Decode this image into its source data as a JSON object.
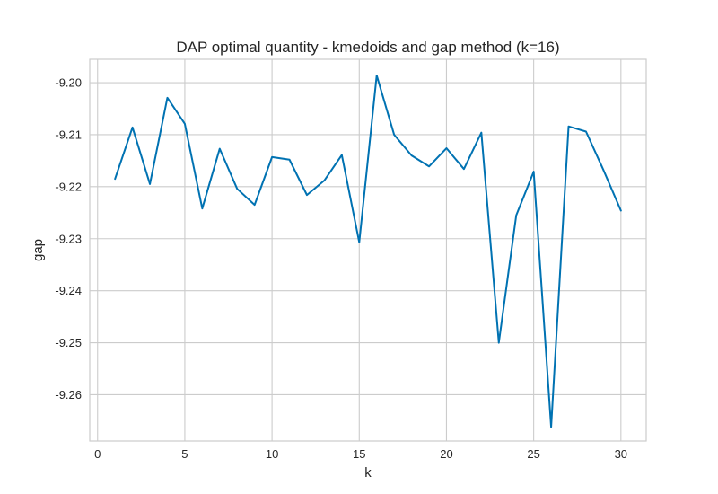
{
  "chart_data": {
    "type": "line",
    "title": "DAP optimal quantity - kmedoids and gap method (k=16)",
    "xlabel": "k",
    "ylabel": "gap",
    "xlim": [
      -0.45,
      31.45
    ],
    "ylim": [
      -9.2689,
      -9.1955
    ],
    "xticks": [
      0,
      5,
      10,
      15,
      20,
      25,
      30
    ],
    "xtick_labels": [
      "0",
      "5",
      "10",
      "15",
      "20",
      "25",
      "30"
    ],
    "yticks": [
      -9.2,
      -9.21,
      -9.22,
      -9.23,
      -9.24,
      -9.25,
      -9.26
    ],
    "ytick_labels": [
      "-9.20",
      "-9.21",
      "-9.22",
      "-9.23",
      "-9.24",
      "-9.25",
      "-9.26"
    ],
    "grid": true,
    "line_color": "#0072b2",
    "series": [
      {
        "x": [
          1,
          2,
          3,
          4,
          5,
          6,
          7,
          8,
          9,
          10,
          11,
          12,
          13,
          14,
          15,
          16,
          17,
          18,
          19,
          20,
          21,
          22,
          23,
          24,
          25,
          26,
          27,
          28,
          29,
          30
        ],
        "values": [
          -9.2185,
          -9.2086,
          -9.2195,
          -9.2029,
          -9.2079,
          -9.2242,
          -9.2127,
          -9.2204,
          -9.2235,
          -9.2143,
          -9.2148,
          -9.2216,
          -9.2188,
          -9.2139,
          -9.2307,
          -9.1986,
          -9.21,
          -9.214,
          -9.2161,
          -9.2126,
          -9.2166,
          -9.2096,
          -9.25,
          -9.2255,
          -9.2171,
          -9.2662,
          -9.2084,
          -9.2094,
          -9.2168,
          -9.2246
        ]
      }
    ]
  }
}
